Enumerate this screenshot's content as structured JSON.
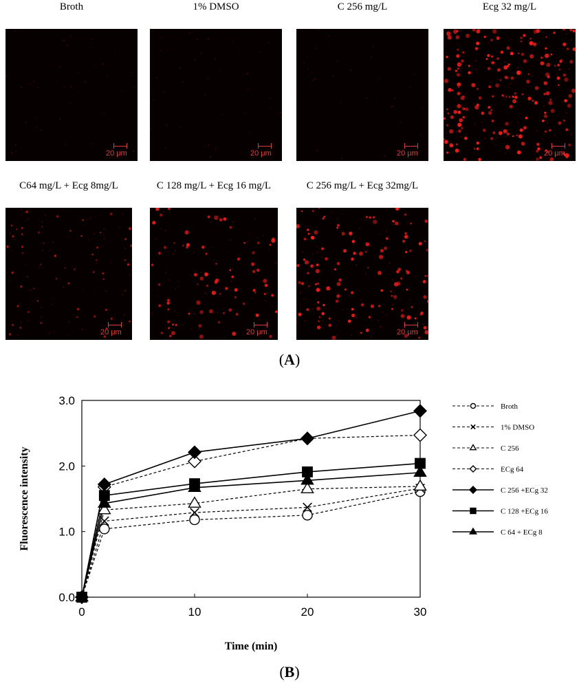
{
  "panel_a": {
    "label": "A",
    "images": [
      {
        "caption": "Broth",
        "density": 0.02,
        "bright": 0.0
      },
      {
        "caption": "1% DMSO",
        "density": 0.03,
        "bright": 0.0
      },
      {
        "caption": "C 256 mg/L",
        "density": 0.02,
        "bright": 0.0
      },
      {
        "caption": "Ecg 32 mg/L",
        "density": 0.9,
        "bright": 1.0
      },
      {
        "caption": "C64 mg/L + Ecg 8mg/L",
        "density": 0.25,
        "bright": 0.4
      },
      {
        "caption": "C 128 mg/L + Ecg 16 mg/L",
        "density": 0.35,
        "bright": 0.8
      },
      {
        "caption": "C 256 mg/L + Ecg 32mg/L",
        "density": 0.55,
        "bright": 1.0
      }
    ],
    "scale_label": "20 μm",
    "image_color": "#070000",
    "dot_color": "#ff2020"
  },
  "panel_b": {
    "label": "B"
  },
  "chart_data": {
    "type": "line",
    "xlabel": "Time (min)",
    "ylabel": "Fluorescence intensity",
    "xlim": [
      0,
      30
    ],
    "ylim": [
      0,
      3
    ],
    "xticks": [
      "0",
      "10",
      "20",
      "30"
    ],
    "yticks": [
      "0.0",
      "1.0",
      "2.0",
      "3.0"
    ],
    "grid": false,
    "legend_position": "right",
    "x": [
      0,
      2,
      10,
      20,
      30
    ],
    "series": [
      {
        "name": "Broth",
        "marker": "circle-open",
        "dash": true,
        "values": [
          0.0,
          1.04,
          1.18,
          1.25,
          1.61
        ]
      },
      {
        "name": "1% DMSO",
        "marker": "x",
        "dash": true,
        "values": [
          0.0,
          1.16,
          1.29,
          1.37,
          1.66
        ]
      },
      {
        "name": "C 256",
        "marker": "triangle-open",
        "dash": true,
        "values": [
          0.0,
          1.33,
          1.43,
          1.65,
          1.69
        ]
      },
      {
        "name": "ECg 64",
        "marker": "diamond-open",
        "dash": true,
        "values": [
          0.0,
          1.68,
          2.07,
          2.42,
          2.47
        ]
      },
      {
        "name": "C 256 +ECg 32",
        "marker": "diamond-filled",
        "dash": false,
        "values": [
          0.0,
          1.72,
          2.21,
          2.42,
          2.84
        ]
      },
      {
        "name": "C 128 +ECg 16",
        "marker": "square-filled",
        "dash": false,
        "values": [
          0.0,
          1.55,
          1.73,
          1.91,
          2.04
        ]
      },
      {
        "name": "C 64 + ECg 8",
        "marker": "triangle-filled",
        "dash": false,
        "values": [
          0.0,
          1.43,
          1.67,
          1.78,
          1.9
        ]
      }
    ]
  }
}
